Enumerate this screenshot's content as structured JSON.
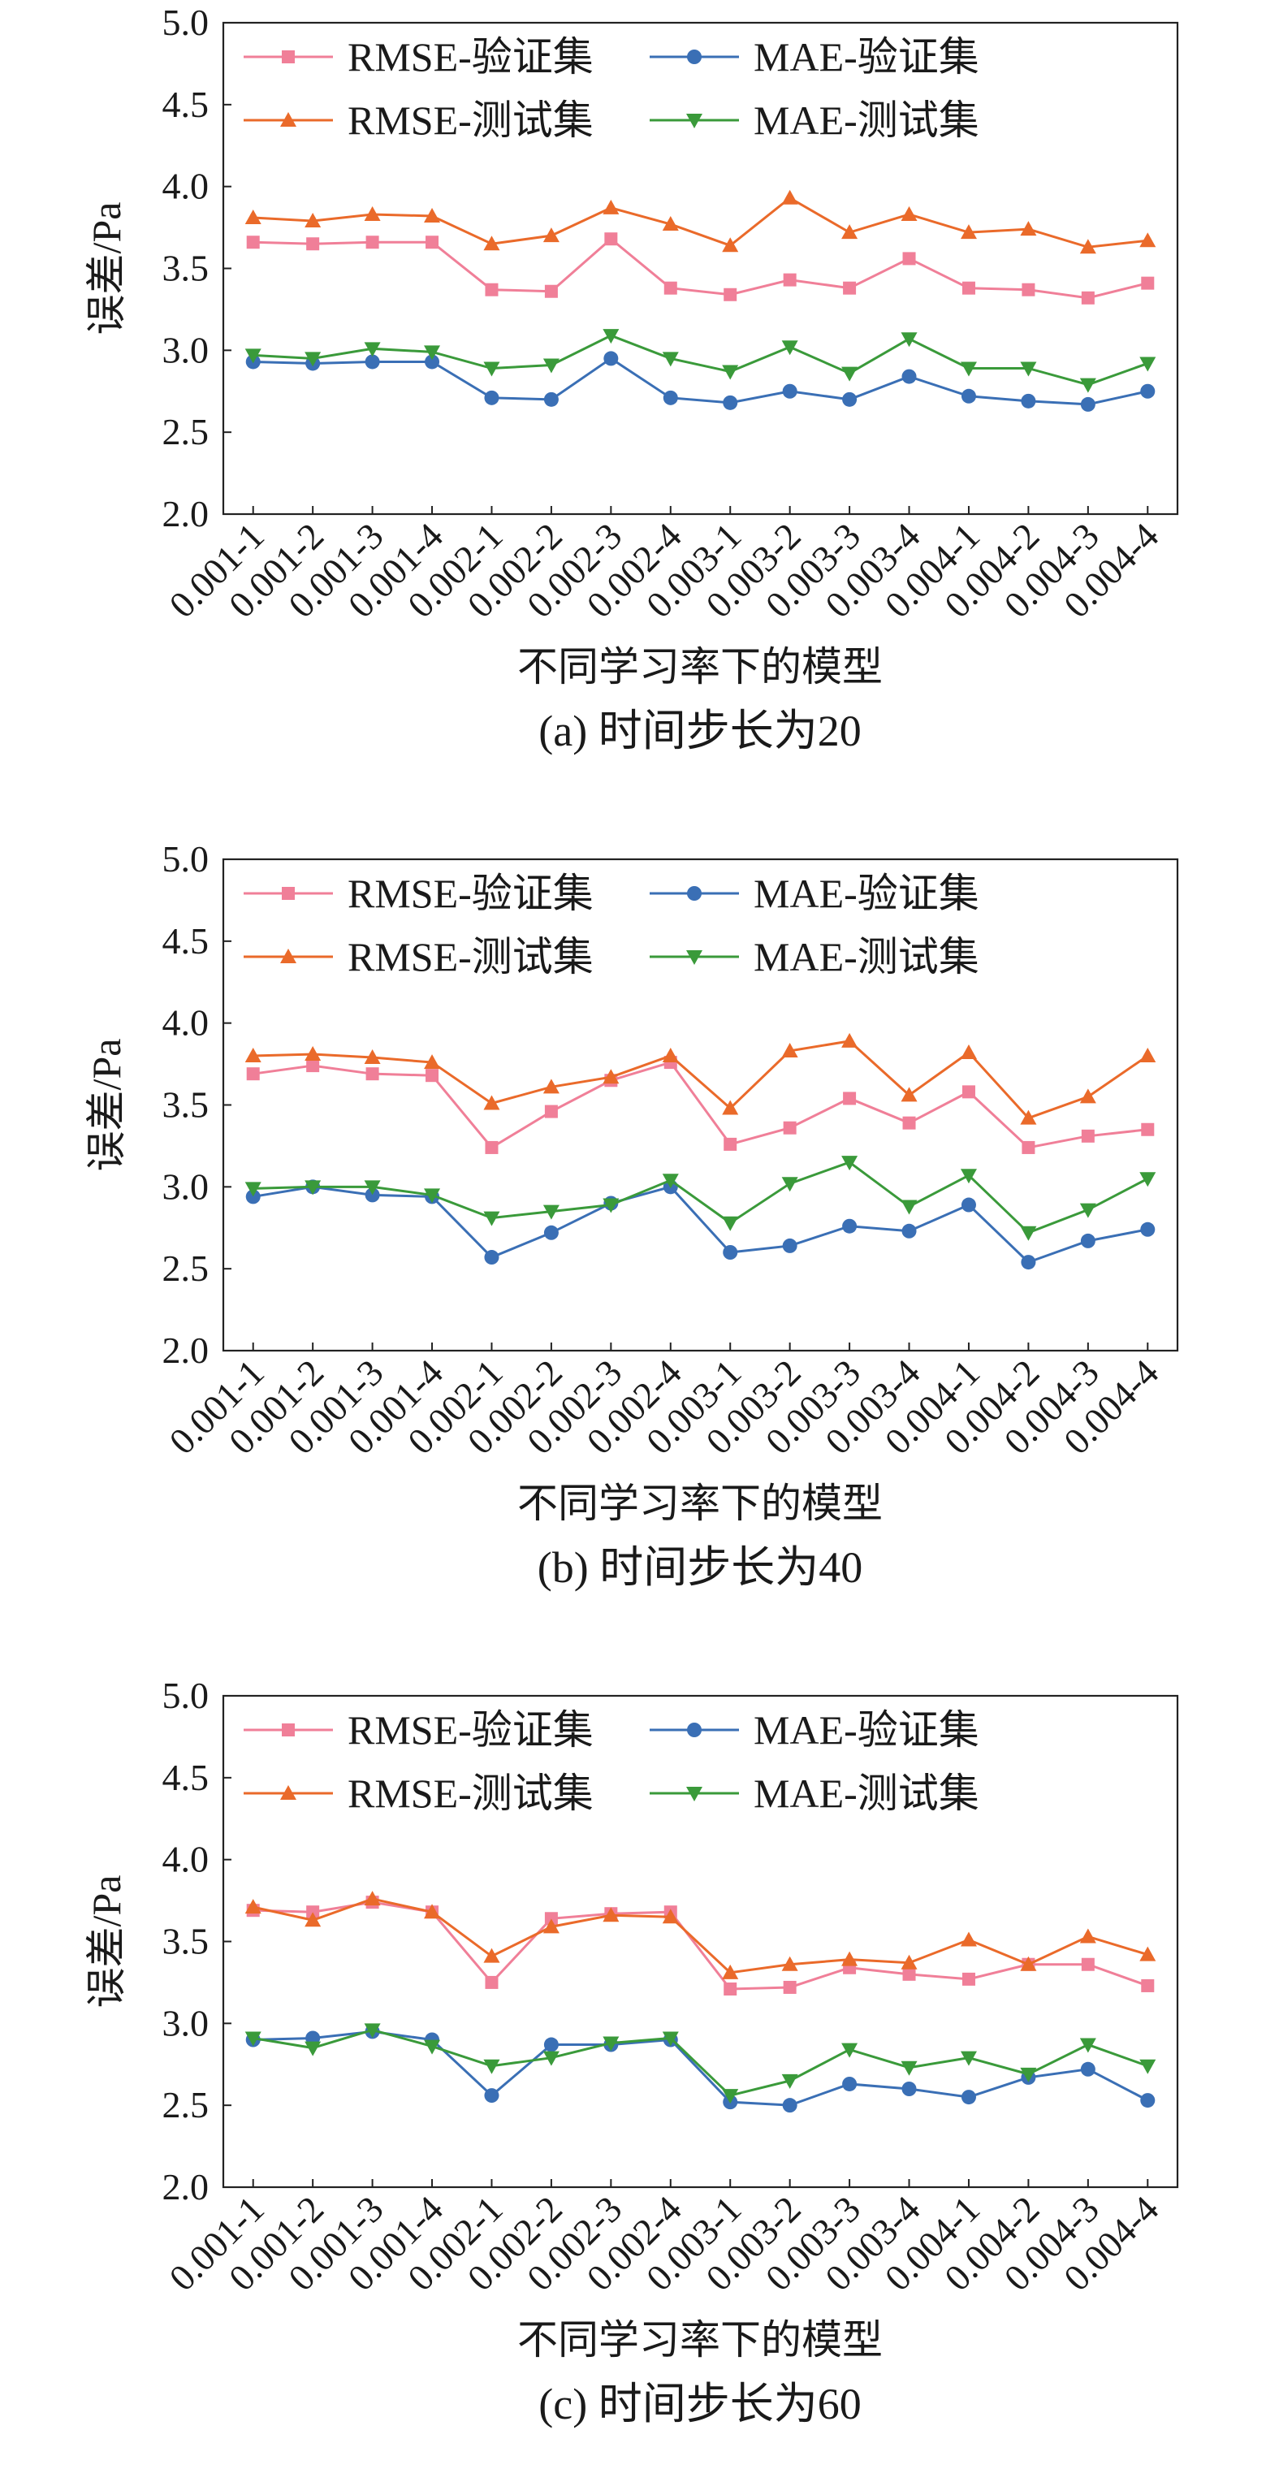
{
  "chart_data": [
    {
      "type": "line",
      "caption": "(a) 时间步长为20",
      "xlabel": "不同学习率下的模型",
      "ylabel": "误差/Pa",
      "ylim": [
        2.0,
        5.0
      ],
      "yticks": [
        "2.0",
        "2.5",
        "3.0",
        "3.5",
        "4.0",
        "4.5",
        "5.0"
      ],
      "categories": [
        "0.001-1",
        "0.001-2",
        "0.001-3",
        "0.001-4",
        "0.002-1",
        "0.002-2",
        "0.002-3",
        "0.002-4",
        "0.003-1",
        "0.003-2",
        "0.003-3",
        "0.003-4",
        "0.004-1",
        "0.004-2",
        "0.004-3",
        "0.004-4"
      ],
      "legend_position": "top-left",
      "grid": false,
      "series": [
        {
          "name": "RMSE-验证集",
          "color": "#f07f98",
          "marker": "square",
          "values": [
            3.66,
            3.65,
            3.66,
            3.66,
            3.37,
            3.36,
            3.68,
            3.38,
            3.34,
            3.43,
            3.38,
            3.56,
            3.38,
            3.37,
            3.32,
            3.41
          ]
        },
        {
          "name": "MAE-验证集",
          "color": "#3a6fb5",
          "marker": "circle",
          "values": [
            2.93,
            2.92,
            2.93,
            2.93,
            2.71,
            2.7,
            2.95,
            2.71,
            2.68,
            2.75,
            2.7,
            2.84,
            2.72,
            2.69,
            2.67,
            2.75
          ]
        },
        {
          "name": "RMSE-测试集",
          "color": "#ea6a2a",
          "marker": "triangle-up",
          "values": [
            3.81,
            3.79,
            3.83,
            3.82,
            3.65,
            3.7,
            3.87,
            3.77,
            3.64,
            3.93,
            3.72,
            3.83,
            3.72,
            3.74,
            3.63,
            3.67
          ]
        },
        {
          "name": "MAE-测试集",
          "color": "#3a9a3a",
          "marker": "triangle-down",
          "values": [
            2.97,
            2.95,
            3.01,
            2.99,
            2.89,
            2.91,
            3.09,
            2.95,
            2.87,
            3.02,
            2.86,
            3.07,
            2.89,
            2.89,
            2.79,
            2.92
          ]
        }
      ]
    },
    {
      "type": "line",
      "caption": "(b) 时间步长为40",
      "xlabel": "不同学习率下的模型",
      "ylabel": "误差/Pa",
      "ylim": [
        2.0,
        5.0
      ],
      "yticks": [
        "2.0",
        "2.5",
        "3.0",
        "3.5",
        "4.0",
        "4.5",
        "5.0"
      ],
      "categories": [
        "0.001-1",
        "0.001-2",
        "0.001-3",
        "0.001-4",
        "0.002-1",
        "0.002-2",
        "0.002-3",
        "0.002-4",
        "0.003-1",
        "0.003-2",
        "0.003-3",
        "0.003-4",
        "0.004-1",
        "0.004-2",
        "0.004-3",
        "0.004-4"
      ],
      "legend_position": "top-left",
      "grid": false,
      "series": [
        {
          "name": "RMSE-验证集",
          "color": "#f07f98",
          "marker": "square",
          "values": [
            3.69,
            3.74,
            3.69,
            3.68,
            3.24,
            3.46,
            3.65,
            3.76,
            3.26,
            3.36,
            3.54,
            3.39,
            3.58,
            3.24,
            3.31,
            3.35
          ]
        },
        {
          "name": "MAE-验证集",
          "color": "#3a6fb5",
          "marker": "circle",
          "values": [
            2.94,
            3.0,
            2.95,
            2.94,
            2.57,
            2.72,
            2.9,
            3.0,
            2.6,
            2.64,
            2.76,
            2.73,
            2.89,
            2.54,
            2.67,
            2.74
          ]
        },
        {
          "name": "RMSE-测试集",
          "color": "#ea6a2a",
          "marker": "triangle-up",
          "values": [
            3.8,
            3.81,
            3.79,
            3.76,
            3.51,
            3.61,
            3.67,
            3.8,
            3.48,
            3.83,
            3.89,
            3.56,
            3.82,
            3.42,
            3.55,
            3.8
          ]
        },
        {
          "name": "MAE-测试集",
          "color": "#3a9a3a",
          "marker": "triangle-down",
          "values": [
            2.99,
            3.0,
            3.0,
            2.95,
            2.81,
            2.85,
            2.89,
            3.04,
            2.78,
            3.02,
            3.15,
            2.88,
            3.07,
            2.72,
            2.86,
            3.05
          ]
        }
      ]
    },
    {
      "type": "line",
      "caption": "(c) 时间步长为60",
      "xlabel": "不同学习率下的模型",
      "ylabel": "误差/Pa",
      "ylim": [
        2.0,
        5.0
      ],
      "yticks": [
        "2.0",
        "2.5",
        "3.0",
        "3.5",
        "4.0",
        "4.5",
        "5.0"
      ],
      "categories": [
        "0.001-1",
        "0.001-2",
        "0.001-3",
        "0.001-4",
        "0.002-1",
        "0.002-2",
        "0.002-3",
        "0.002-4",
        "0.003-1",
        "0.003-2",
        "0.003-3",
        "0.003-4",
        "0.004-1",
        "0.004-2",
        "0.004-3",
        "0.004-4"
      ],
      "legend_position": "top-left",
      "grid": false,
      "series": [
        {
          "name": "RMSE-验证集",
          "color": "#f07f98",
          "marker": "square",
          "values": [
            3.69,
            3.68,
            3.74,
            3.68,
            3.25,
            3.64,
            3.67,
            3.68,
            3.21,
            3.22,
            3.34,
            3.3,
            3.27,
            3.36,
            3.36,
            3.23
          ]
        },
        {
          "name": "MAE-验证集",
          "color": "#3a6fb5",
          "marker": "circle",
          "values": [
            2.9,
            2.91,
            2.95,
            2.9,
            2.56,
            2.87,
            2.87,
            2.9,
            2.52,
            2.5,
            2.63,
            2.6,
            2.55,
            2.67,
            2.72,
            2.53
          ]
        },
        {
          "name": "RMSE-测试集",
          "color": "#ea6a2a",
          "marker": "triangle-up",
          "values": [
            3.71,
            3.63,
            3.76,
            3.68,
            3.41,
            3.59,
            3.66,
            3.65,
            3.31,
            3.36,
            3.39,
            3.37,
            3.51,
            3.36,
            3.53,
            3.42
          ]
        },
        {
          "name": "MAE-测试集",
          "color": "#3a9a3a",
          "marker": "triangle-down",
          "values": [
            2.91,
            2.85,
            2.96,
            2.86,
            2.74,
            2.79,
            2.88,
            2.91,
            2.56,
            2.65,
            2.84,
            2.73,
            2.79,
            2.69,
            2.87,
            2.74
          ]
        }
      ]
    }
  ]
}
